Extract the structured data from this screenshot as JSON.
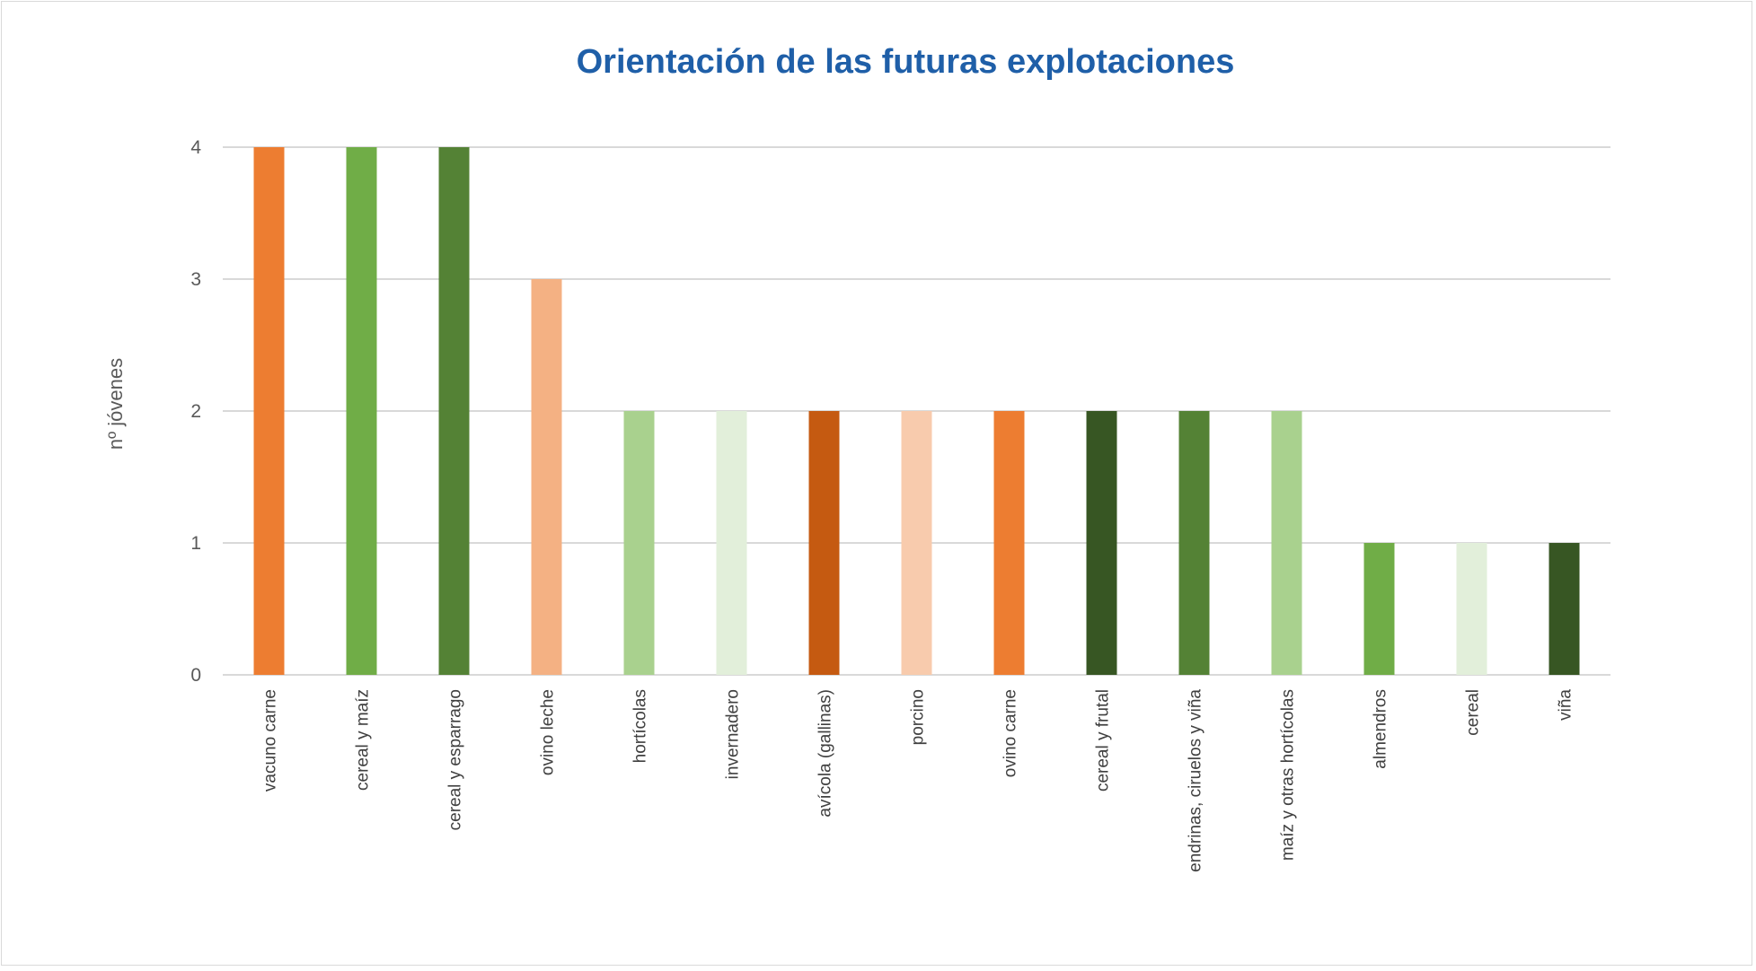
{
  "chart_data": {
    "type": "bar",
    "title": "Orientación de las futuras explotaciones",
    "xlabel": "",
    "ylabel": "nº jóvenes",
    "ylim": [
      0,
      4
    ],
    "yticks": [
      0,
      1,
      2,
      3,
      4
    ],
    "grid": true,
    "legend": "none",
    "categories": [
      "vacuno carne",
      "cereal y maíz",
      "cereal y esparrago",
      "ovino leche",
      "hortícolas",
      "invernadero",
      "avícola (gallinas)",
      "porcino",
      "ovino carne",
      "cereal y frutal",
      "endrinas, ciruelos y viña",
      "maíz y otras hortícolas",
      "almendros",
      "cereal",
      "viña"
    ],
    "values": [
      4,
      4,
      4,
      3,
      2,
      2,
      2,
      2,
      2,
      2,
      2,
      2,
      1,
      1,
      1
    ],
    "colors": [
      "#ed7d31",
      "#70ad47",
      "#548235",
      "#f4b183",
      "#a9d18e",
      "#e2efda",
      "#c55a11",
      "#f8cbad",
      "#ed7d31",
      "#375623",
      "#548235",
      "#a9d18e",
      "#70ad47",
      "#e2efda",
      "#375623"
    ]
  }
}
